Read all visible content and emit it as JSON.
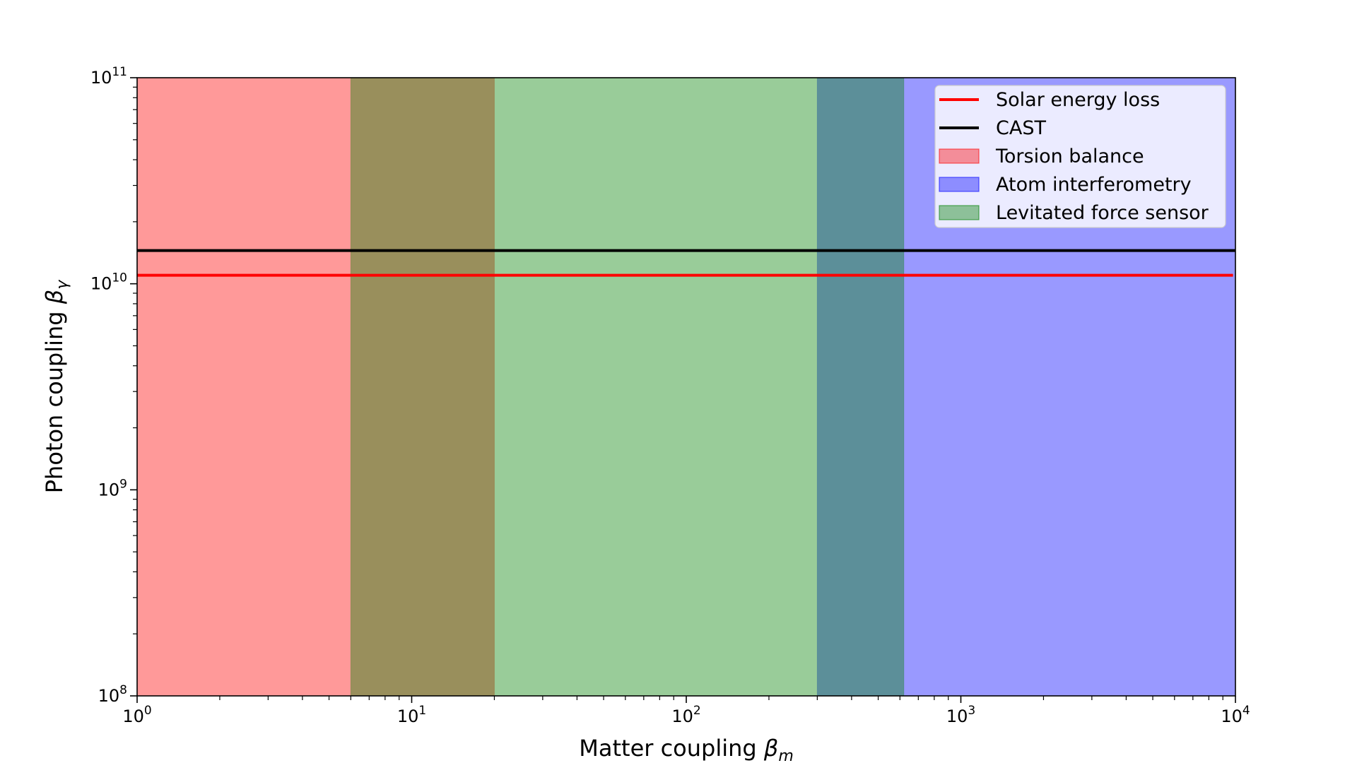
{
  "chart_data": {
    "type": "area",
    "xlabel": "Matter coupling",
    "xlabel_symbol": "β",
    "xlabel_sub": "m",
    "ylabel": "Photon coupling",
    "ylabel_symbol": "β",
    "ylabel_sub": "γ",
    "xscale": "log",
    "yscale": "log",
    "xlim": [
      1,
      10000
    ],
    "ylim": [
      100000000,
      100000000000
    ],
    "x_ticks": [
      {
        "base": "10",
        "exp": "0",
        "value": 1
      },
      {
        "base": "10",
        "exp": "1",
        "value": 10
      },
      {
        "base": "10",
        "exp": "2",
        "value": 100
      },
      {
        "base": "10",
        "exp": "3",
        "value": 1000
      },
      {
        "base": "10",
        "exp": "4",
        "value": 10000
      }
    ],
    "y_ticks": [
      {
        "base": "10",
        "exp": "8",
        "value": 100000000
      },
      {
        "base": "10",
        "exp": "9",
        "value": 1000000000
      },
      {
        "base": "10",
        "exp": "10",
        "value": 10000000000
      },
      {
        "base": "10",
        "exp": "11",
        "value": 100000000000
      }
    ],
    "grid": false,
    "legend_position": "top-right",
    "series": [
      {
        "name": "Torsion balance",
        "kind": "band",
        "x_min": 1,
        "x_max": 20,
        "color": "#ff0000",
        "opacity": 0.4
      },
      {
        "name": "Atom interferometry",
        "kind": "band",
        "x_min": 300,
        "x_max": 10000,
        "color": "#0000ff",
        "opacity": 0.4
      },
      {
        "name": "Levitated force sensor",
        "kind": "band",
        "x_min": 6,
        "x_max": 620,
        "color": "#008000",
        "opacity": 0.4
      },
      {
        "name": "Solar energy loss",
        "kind": "hline",
        "y": 11000000000,
        "x_min": 1,
        "x_max": 9800,
        "color": "#ff0000"
      },
      {
        "name": "CAST",
        "kind": "hline",
        "y": 14500000000,
        "x_min": 1,
        "x_max": 10000,
        "color": "#000000"
      }
    ],
    "legend_order": [
      "Solar energy loss",
      "CAST",
      "Torsion balance",
      "Atom interferometry",
      "Levitated force sensor"
    ]
  }
}
